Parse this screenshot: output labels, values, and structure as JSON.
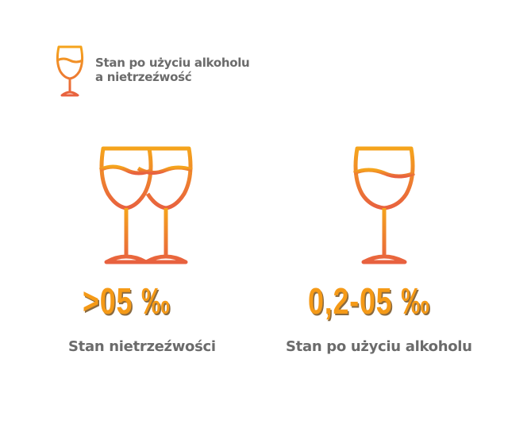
{
  "header": {
    "line1": "Stan po użyciu alkoholu",
    "line2": "a nietrzeźwość",
    "icon": "wine-glass-icon"
  },
  "left": {
    "value": ">05 ‰",
    "label": "Stan nietrzeźwości",
    "icon": "two-wine-glasses-icon"
  },
  "right": {
    "value": "0,2-05 ‰",
    "label": "Stan po użyciu alkoholu",
    "icon": "wine-glass-icon"
  },
  "colors": {
    "gradient_top": "#f5a41c",
    "gradient_bottom": "#e8613f",
    "text": "#6b6b6b",
    "value": "#f59a17"
  }
}
